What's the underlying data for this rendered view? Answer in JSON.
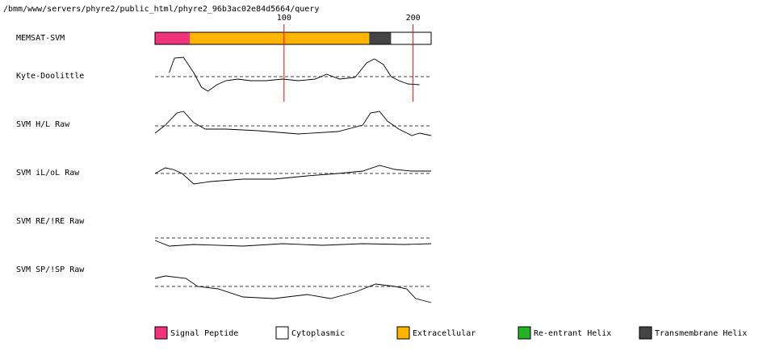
{
  "chart_data": {
    "type": "memsat",
    "title": "/bmm/www/servers/phyre2/public_html/phyre2_96b3ac02e84d5664/query",
    "xlim": [
      0,
      214
    ],
    "xticks": [
      100,
      200
    ],
    "tick_color": "#ff0000",
    "topology": {
      "name": "MEMSAT-SVM",
      "segments": [
        {
          "start": 0,
          "end": 27,
          "color": "#f0347c"
        },
        {
          "start": 27,
          "end": 166,
          "color": "#ffb400"
        },
        {
          "start": 166,
          "end": 183,
          "color": "#444444"
        },
        {
          "start": 183,
          "end": 214,
          "color": "#ffffff"
        }
      ]
    },
    "tracks": [
      {
        "name": "Kyte-Doolittle",
        "ylim": [
          -3,
          3
        ],
        "reference": 0,
        "x": [
          11,
          15,
          22,
          30,
          36,
          41,
          48,
          55,
          64,
          74,
          86,
          99,
          111,
          124,
          133,
          143,
          155,
          164,
          170,
          177,
          183,
          189,
          196,
          205
        ],
        "values": [
          0.5,
          2.3,
          2.4,
          0.5,
          -1.3,
          -1.8,
          -1.0,
          -0.5,
          -0.3,
          -0.5,
          -0.5,
          -0.3,
          -0.5,
          -0.3,
          0.3,
          -0.3,
          -0.1,
          1.7,
          2.2,
          1.5,
          0,
          -0.5,
          -0.9,
          -1.0
        ]
      },
      {
        "name": "SVM H/L Raw",
        "ylim": [
          -3,
          3
        ],
        "reference": 0,
        "x": [
          0,
          8,
          17,
          22,
          30,
          39,
          55,
          80,
          111,
          142,
          161,
          167,
          174,
          180,
          189,
          199,
          205,
          214
        ],
        "values": [
          -0.9,
          0.1,
          1.6,
          1.8,
          0.4,
          -0.4,
          -0.4,
          -0.6,
          -1.0,
          -0.7,
          0.1,
          1.6,
          1.8,
          0.6,
          -0.4,
          -1.2,
          -0.9,
          -1.2
        ]
      },
      {
        "name": "SVM iL/oL Raw",
        "ylim": [
          -3,
          3
        ],
        "reference": 0,
        "x": [
          0,
          8,
          14,
          21,
          30,
          43,
          68,
          92,
          118,
          142,
          161,
          174,
          186,
          199,
          214
        ],
        "values": [
          0,
          0.7,
          0.5,
          0,
          -1.3,
          -1.0,
          -0.7,
          -0.7,
          -0.3,
          0,
          0.3,
          1.0,
          0.5,
          0.3,
          0.3
        ]
      },
      {
        "name": "SVM RE/!RE Raw",
        "ylim": [
          -3,
          3
        ],
        "reference": 0,
        "x": [
          0,
          11,
          30,
          68,
          99,
          130,
          161,
          193,
          214
        ],
        "values": [
          -0.3,
          -1.0,
          -0.8,
          -1.0,
          -0.7,
          -0.9,
          -0.7,
          -0.8,
          -0.7
        ]
      },
      {
        "name": "SVM SP/!SP Raw",
        "ylim": [
          -3,
          3
        ],
        "reference": 0,
        "x": [
          0,
          8,
          24,
          33,
          49,
          68,
          92,
          118,
          136,
          155,
          171,
          186,
          195,
          202,
          214
        ],
        "values": [
          1.0,
          1.3,
          1.0,
          0,
          -0.3,
          -1.3,
          -1.5,
          -1.0,
          -1.5,
          -0.7,
          0.3,
          0,
          -0.3,
          -1.5,
          -2.0
        ]
      }
    ],
    "legend": [
      {
        "name": "Signal Peptide",
        "color": "#f0347c"
      },
      {
        "name": "Cytoplasmic",
        "color": "#ffffff"
      },
      {
        "name": "Extracellular",
        "color": "#ffb400"
      },
      {
        "name": "Re-entrant Helix",
        "color": "#22b422"
      },
      {
        "name": "Transmembrane Helix",
        "color": "#444444"
      }
    ]
  }
}
